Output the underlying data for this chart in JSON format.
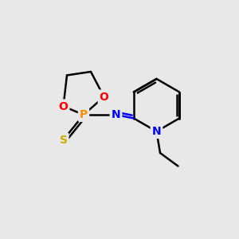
{
  "bg_color": "#e8e8e8",
  "atom_colors": {
    "C": "#000000",
    "N": "#0000ff",
    "O": "#ff0000",
    "P": "#ff8c00",
    "S": "#ccaa00"
  },
  "bond_color": "#000000",
  "bond_width": 1.8,
  "figsize": [
    3.0,
    3.0
  ],
  "dpi": 100
}
